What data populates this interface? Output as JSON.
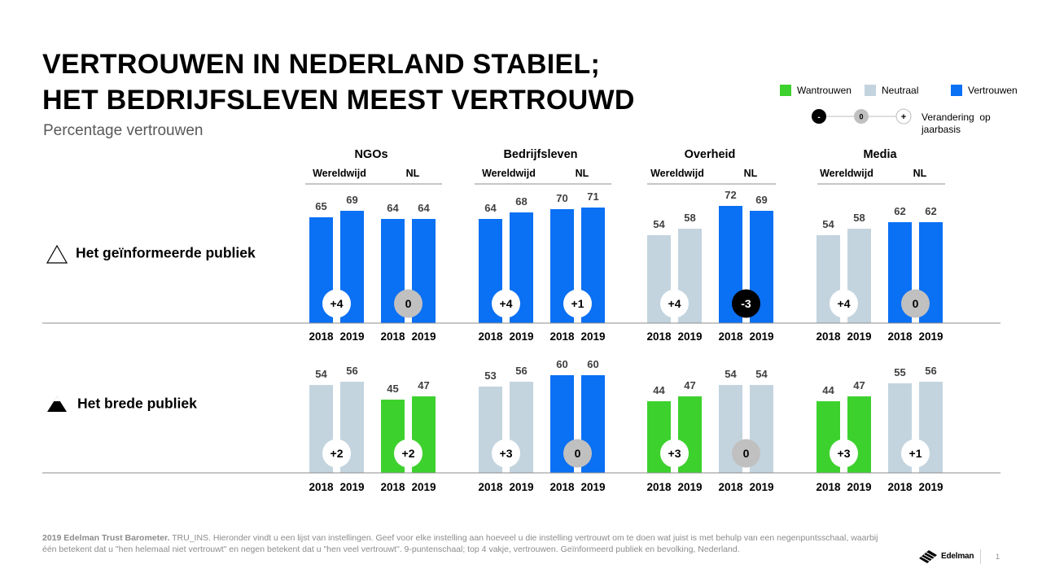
{
  "title_line1": "VERTROUWEN IN NEDERLAND STABIEL;",
  "title_line2": "HET BEDRIJFSLEVEN MEEST VERTROUWD",
  "subtitle": "Percentage vertrouwen",
  "legend": {
    "items": [
      {
        "label": "Wantrouwen",
        "color": "#3dd12e"
      },
      {
        "label": "Neutraal",
        "color": "#c3d4df"
      },
      {
        "label": "Vertrouwen",
        "color": "#0a70f4"
      }
    ],
    "change_symbols": [
      "-",
      "0",
      "+"
    ],
    "change_label_line1": "Verandering  op",
    "change_label_line2": "jaarbasis"
  },
  "row_labels": [
    "Het geïnformeerde publiek",
    "Het brede publiek"
  ],
  "colors": {
    "distrust": "#3dd12e",
    "neutral": "#c3d4df",
    "trust": "#0a70f4",
    "change_up": "#ffffff",
    "change_zero": "#c0c0c0",
    "change_down": "#000000"
  },
  "chart_data": {
    "type": "bar",
    "x": [
      "2018",
      "2019"
    ],
    "groups": [
      {
        "name": "NGOs",
        "subgroups": [
          "Wereldwijd",
          "NL"
        ]
      },
      {
        "name": "Bedrijfsleven",
        "subgroups": [
          "Wereldwijd",
          "NL"
        ]
      },
      {
        "name": "Overheid",
        "subgroups": [
          "Wereldwijd",
          "NL"
        ]
      },
      {
        "name": "Media",
        "subgroups": [
          "Wereldwijd",
          "NL"
        ]
      }
    ],
    "rows": [
      {
        "name": "Het geïnformeerde publiek",
        "pairs": [
          {
            "group": "NGOs",
            "subgroup": "Wereldwijd",
            "values": [
              65,
              69
            ],
            "categories": [
              "trust",
              "trust"
            ],
            "change": "+4"
          },
          {
            "group": "NGOs",
            "subgroup": "NL",
            "values": [
              64,
              64
            ],
            "categories": [
              "trust",
              "trust"
            ],
            "change": "0"
          },
          {
            "group": "Bedrijfsleven",
            "subgroup": "Wereldwijd",
            "values": [
              64,
              68
            ],
            "categories": [
              "trust",
              "trust"
            ],
            "change": "+4"
          },
          {
            "group": "Bedrijfsleven",
            "subgroup": "NL",
            "values": [
              70,
              71
            ],
            "categories": [
              "trust",
              "trust"
            ],
            "change": "+1"
          },
          {
            "group": "Overheid",
            "subgroup": "Wereldwijd",
            "values": [
              54,
              58
            ],
            "categories": [
              "neutral",
              "neutral"
            ],
            "change": "+4"
          },
          {
            "group": "Overheid",
            "subgroup": "NL",
            "values": [
              72,
              69
            ],
            "categories": [
              "trust",
              "trust"
            ],
            "change": "-3"
          },
          {
            "group": "Media",
            "subgroup": "Wereldwijd",
            "values": [
              54,
              58
            ],
            "categories": [
              "neutral",
              "neutral"
            ],
            "change": "+4"
          },
          {
            "group": "Media",
            "subgroup": "NL",
            "values": [
              62,
              62
            ],
            "categories": [
              "trust",
              "trust"
            ],
            "change": "0"
          }
        ]
      },
      {
        "name": "Het brede publiek",
        "pairs": [
          {
            "group": "NGOs",
            "subgroup": "Wereldwijd",
            "values": [
              54,
              56
            ],
            "categories": [
              "neutral",
              "neutral"
            ],
            "change": "+2"
          },
          {
            "group": "NGOs",
            "subgroup": "NL",
            "values": [
              45,
              47
            ],
            "categories": [
              "distrust",
              "distrust"
            ],
            "change": "+2"
          },
          {
            "group": "Bedrijfsleven",
            "subgroup": "Wereldwijd",
            "values": [
              53,
              56
            ],
            "categories": [
              "neutral",
              "neutral"
            ],
            "change": "+3"
          },
          {
            "group": "Bedrijfsleven",
            "subgroup": "NL",
            "values": [
              60,
              60
            ],
            "categories": [
              "trust",
              "trust"
            ],
            "change": "0"
          },
          {
            "group": "Overheid",
            "subgroup": "Wereldwijd",
            "values": [
              44,
              47
            ],
            "categories": [
              "distrust",
              "distrust"
            ],
            "change": "+3"
          },
          {
            "group": "Overheid",
            "subgroup": "NL",
            "values": [
              54,
              54
            ],
            "categories": [
              "neutral",
              "neutral"
            ],
            "change": "0"
          },
          {
            "group": "Media",
            "subgroup": "Wereldwijd",
            "values": [
              44,
              47
            ],
            "categories": [
              "distrust",
              "distrust"
            ],
            "change": "+3"
          },
          {
            "group": "Media",
            "subgroup": "NL",
            "values": [
              55,
              56
            ],
            "categories": [
              "neutral",
              "neutral"
            ],
            "change": "+1"
          }
        ]
      }
    ]
  },
  "footer": {
    "source_bold": "2019 Edelman Trust Barometer.",
    "text": " TRU_INS. Hieronder vindt u een lijst van instellingen. Geef voor elke instelling aan hoeveel u die instelling vertrouwt om te doen wat juist is met behulp van een negenpuntsschaal, waarbij één betekent dat u \"hen helemaal niet vertrouwt\" en negen betekent dat u \"hen veel vertrouwt\". 9-puntenschaal; top 4 vakje, vertrouwen. Geïnformeerd publiek en bevolking, Nederland."
  },
  "brand": "Edelman",
  "page_number": "1"
}
